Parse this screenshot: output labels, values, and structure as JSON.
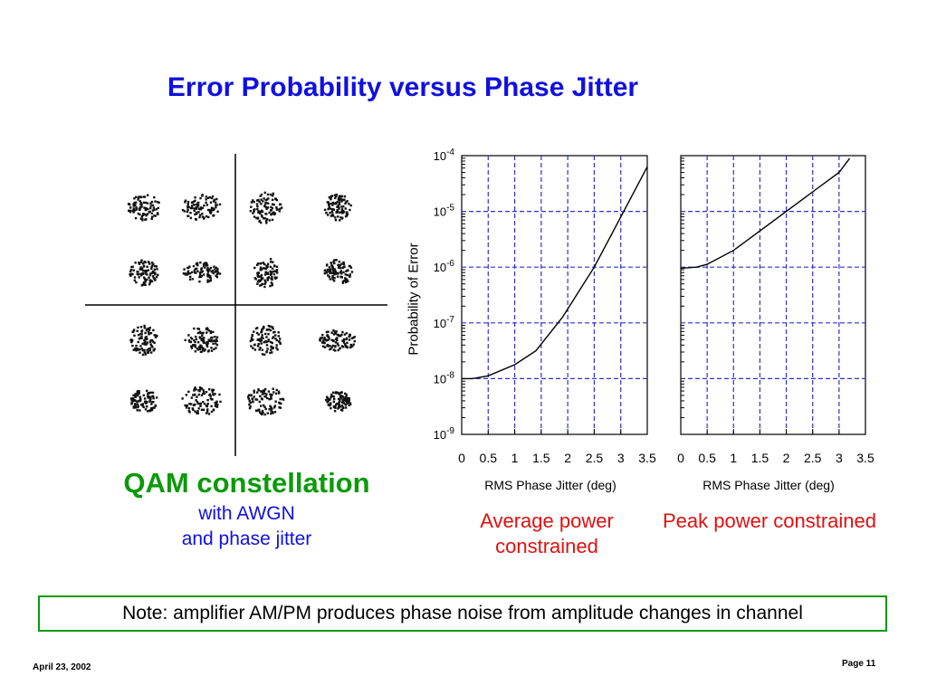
{
  "slide": {
    "title": "Error Probability versus Phase Jitter",
    "note": "Note: amplifier AM/PM produces phase noise from amplitude changes in channel",
    "footer_date": "April 23, 2002",
    "footer_page": "Page 11"
  },
  "qam": {
    "label": "QAM constellation",
    "subtitle_1": "with AWGN",
    "subtitle_2": "and phase jitter",
    "grid": "4x4"
  },
  "chart_data": [
    {
      "type": "line",
      "ylabel": "Probability of Error",
      "xlabel": "RMS Phase Jitter (deg)",
      "caption": "Average power constrained",
      "x_ticks": [
        "0",
        "0.5",
        "1",
        "1.5",
        "2",
        "2.5",
        "3",
        "3.5"
      ],
      "y_ticks": [
        "10-4",
        "10-5",
        "10-6",
        "10-7",
        "10-8",
        "10-9"
      ],
      "xlim": [
        0,
        3.5
      ],
      "ylim_log10": [
        -9,
        -4
      ],
      "y_scale": "log",
      "grid": true,
      "series": [
        {
          "x": [
            0,
            0.2,
            0.5,
            1.0,
            1.4,
            1.9,
            2.5,
            3.0,
            3.5
          ],
          "log10_y": [
            -8.0,
            -8.0,
            -7.95,
            -7.75,
            -7.5,
            -6.9,
            -6.0,
            -5.1,
            -4.2
          ]
        }
      ]
    },
    {
      "type": "line",
      "xlabel": "RMS Phase Jitter (deg)",
      "caption": "Peak power constrained",
      "x_ticks": [
        "0",
        "0.5",
        "1",
        "1.5",
        "2",
        "2.5",
        "3",
        "3.5"
      ],
      "xlim": [
        0,
        3.5
      ],
      "ylim_log10": [
        -9,
        -4
      ],
      "y_scale": "log",
      "grid": true,
      "series": [
        {
          "x": [
            0,
            0.3,
            0.5,
            1.0,
            1.5,
            2.0,
            2.5,
            3.0,
            3.2
          ],
          "log10_y": [
            -6.02,
            -6.0,
            -5.95,
            -5.7,
            -5.35,
            -5.0,
            -4.65,
            -4.3,
            -4.05
          ]
        }
      ]
    }
  ]
}
